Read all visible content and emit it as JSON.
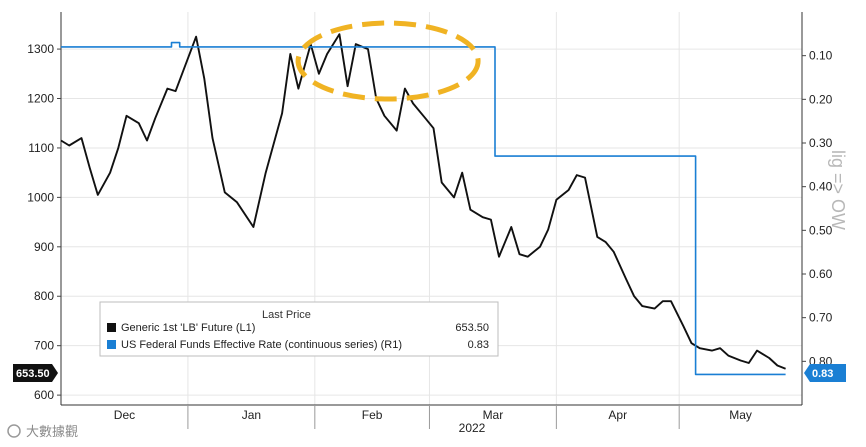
{
  "chart_data": {
    "type": "line",
    "title": "",
    "legend": {
      "title": "Last Price",
      "position": "bottom-left",
      "entries": [
        {
          "name": "Generic 1st 'LB' Future  (L1)",
          "value": "653.50",
          "color": "#111111"
        },
        {
          "name": "US Federal Funds Effective Rate (continuous series)  (R1)",
          "value": "0.83",
          "color": "#1a7fd4"
        }
      ]
    },
    "x_axis": {
      "month_labels": [
        "Dec",
        "Jan",
        "Feb",
        "Mar",
        "Apr",
        "May"
      ],
      "year_label": "2022",
      "range": [
        "2021-12-01",
        "2022-05-31"
      ]
    },
    "y_axis_left": {
      "ticks": [
        600,
        700,
        800,
        900,
        1000,
        1100,
        1200,
        1300
      ],
      "tick_labels": [
        "600",
        "700",
        "800",
        "900",
        "1000",
        "1100",
        "1200",
        "1300"
      ],
      "range": [
        580,
        1375
      ]
    },
    "y_axis_right": {
      "inverted": true,
      "ticks": [
        0.1,
        0.2,
        0.3,
        0.4,
        0.5,
        0.6,
        0.7,
        0.8
      ],
      "tick_labels": [
        "0.10",
        "0.20",
        "0.30",
        "0.40",
        "0.50",
        "0.60",
        "0.70",
        "0.80"
      ],
      "range": [
        0.0,
        0.9
      ]
    },
    "grid": true,
    "badges": {
      "left": "653.50",
      "right": "0.83"
    },
    "highlight": "dashed-ellipse-around-feb-peak",
    "series": [
      {
        "name": "Generic 1st 'LB' Future  (L1)",
        "axis": "left",
        "color": "#111111",
        "x": [
          "2021-12-01",
          "2021-12-03",
          "2021-12-06",
          "2021-12-08",
          "2021-12-10",
          "2021-12-13",
          "2021-12-15",
          "2021-12-17",
          "2021-12-20",
          "2021-12-22",
          "2021-12-24",
          "2021-12-27",
          "2021-12-29",
          "2022-01-03",
          "2022-01-05",
          "2022-01-07",
          "2022-01-10",
          "2022-01-13",
          "2022-01-17",
          "2022-01-20",
          "2022-01-24",
          "2022-01-26",
          "2022-01-28",
          "2022-01-31",
          "2022-02-02",
          "2022-02-04",
          "2022-02-07",
          "2022-02-09",
          "2022-02-11",
          "2022-02-14",
          "2022-02-16",
          "2022-02-18",
          "2022-02-21",
          "2022-02-23",
          "2022-02-25",
          "2022-02-28",
          "2022-03-02",
          "2022-03-04",
          "2022-03-07",
          "2022-03-09",
          "2022-03-11",
          "2022-03-14",
          "2022-03-16",
          "2022-03-18",
          "2022-03-21",
          "2022-03-23",
          "2022-03-25",
          "2022-03-28",
          "2022-03-30",
          "2022-04-01",
          "2022-04-04",
          "2022-04-06",
          "2022-04-08",
          "2022-04-11",
          "2022-04-13",
          "2022-04-15",
          "2022-04-18",
          "2022-04-20",
          "2022-04-22",
          "2022-04-25",
          "2022-04-27",
          "2022-04-29",
          "2022-05-02",
          "2022-05-04",
          "2022-05-06",
          "2022-05-09",
          "2022-05-11",
          "2022-05-13",
          "2022-05-16",
          "2022-05-18",
          "2022-05-20",
          "2022-05-23",
          "2022-05-25",
          "2022-05-27"
        ],
        "values": [
          1115,
          1105,
          1120,
          1060,
          1005,
          1050,
          1100,
          1165,
          1150,
          1115,
          1160,
          1220,
          1215,
          1325,
          1240,
          1120,
          1010,
          990,
          940,
          1050,
          1170,
          1290,
          1220,
          1310,
          1250,
          1290,
          1330,
          1225,
          1310,
          1300,
          1200,
          1165,
          1135,
          1220,
          1190,
          1160,
          1140,
          1030,
          1000,
          1050,
          975,
          960,
          955,
          880,
          940,
          885,
          880,
          900,
          935,
          995,
          1015,
          1045,
          1040,
          920,
          910,
          890,
          835,
          800,
          780,
          775,
          790,
          790,
          740,
          705,
          695,
          690,
          695,
          680,
          670,
          665,
          690,
          675,
          660,
          653.5
        ]
      },
      {
        "name": "US Federal Funds Effective Rate (continuous series)  (R1)",
        "axis": "right",
        "color": "#1a7fd4",
        "step": true,
        "x": [
          "2021-12-01",
          "2021-12-26",
          "2021-12-28",
          "2021-12-30",
          "2022-03-16",
          "2022-03-17",
          "2022-05-04",
          "2022-05-05",
          "2022-05-27"
        ],
        "values": [
          0.08,
          0.08,
          0.07,
          0.08,
          0.08,
          0.33,
          0.33,
          0.83,
          0.83
        ]
      }
    ]
  },
  "watermark": {
    "bottom_left": "大數據觀",
    "side_vertical": "lig => OW"
  }
}
